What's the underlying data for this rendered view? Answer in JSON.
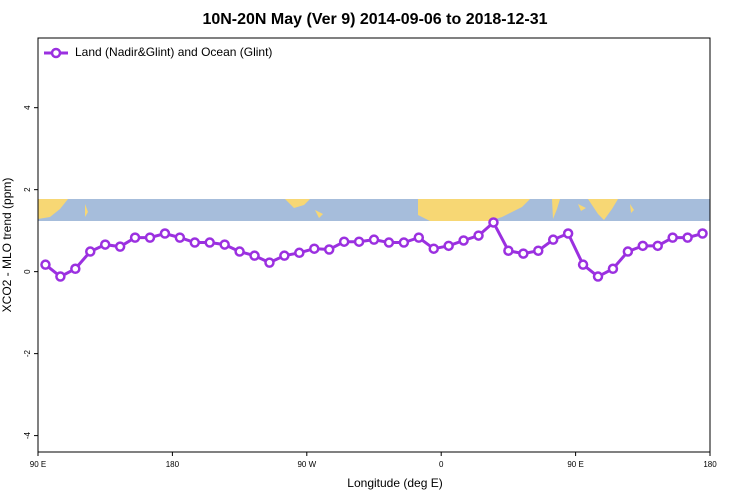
{
  "chart_data": {
    "type": "line",
    "title": "10N-20N May (Ver 9)   2014-09-06 to 2018-12-31",
    "xlabel": "Longitude (deg E)",
    "ylabel": "XCO2 - MLO trend (ppm)",
    "xlim": [
      90,
      540
    ],
    "ylim": [
      -4.4,
      5.7
    ],
    "xticks": [
      {
        "value": 90,
        "label": "90 E"
      },
      {
        "value": 180,
        "label": "180"
      },
      {
        "value": 270,
        "label": "90 W"
      },
      {
        "value": 360,
        "label": "0"
      },
      {
        "value": 450,
        "label": "90 E"
      },
      {
        "value": 540,
        "label": "180"
      }
    ],
    "yticks": [
      -4,
      -2,
      0,
      2,
      4
    ],
    "legend": "top-left",
    "x": [
      95,
      105,
      115,
      125,
      135,
      145,
      155,
      165,
      175,
      185,
      195,
      205,
      215,
      225,
      235,
      245,
      255,
      265,
      275,
      285,
      295,
      305,
      315,
      325,
      335,
      345,
      355,
      365,
      375,
      385,
      395,
      405,
      415,
      425,
      435,
      445,
      455,
      465,
      475,
      485,
      495,
      505,
      515,
      525,
      535
    ],
    "series": [
      {
        "name": "Land (Nadir&Glint) and Ocean (Glint)",
        "color": "#9b30e0",
        "values": [
          0.17,
          -0.12,
          0.07,
          0.49,
          0.66,
          0.61,
          0.83,
          0.83,
          0.93,
          0.83,
          0.71,
          0.71,
          0.66,
          0.49,
          0.39,
          0.22,
          0.39,
          0.46,
          0.56,
          0.54,
          0.73,
          0.73,
          0.78,
          0.71,
          0.71,
          0.83,
          0.56,
          0.63,
          0.76,
          0.88,
          1.2,
          0.51,
          0.44,
          0.51,
          0.78,
          0.93,
          0.17,
          -0.12,
          0.07,
          0.49,
          0.63,
          0.63,
          0.83,
          0.83,
          0.93
        ]
      }
    ]
  }
}
